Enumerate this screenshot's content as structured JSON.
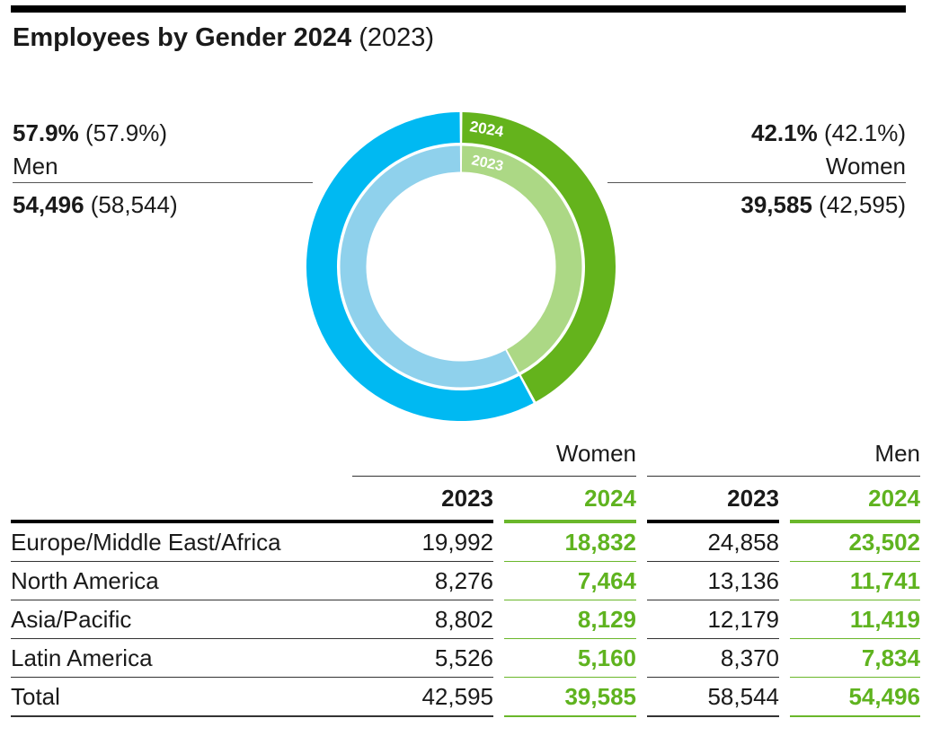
{
  "title": {
    "main": "Employees by Gender 2024",
    "previous": "(2023)"
  },
  "kpis": {
    "men": {
      "pct_2024": "57.9%",
      "pct_2023": "(57.9%)",
      "label": "Men",
      "count_2024": "54,496",
      "count_2023": "(58,544)"
    },
    "women": {
      "pct_2024": "42.1%",
      "pct_2023": "(42.1%)",
      "label": "Women",
      "count_2024": "39,585",
      "count_2023": "(42,595)"
    }
  },
  "colors": {
    "men_2024": "#00b9f2",
    "men_2023": "#8fd1ec",
    "women_2024": "#64b31c",
    "women_2023": "#acd885",
    "accent_green": "#5fb31f"
  },
  "chart_data": [
    {
      "type": "pie",
      "variant": "donut (two rings: outer 2024, inner 2023)",
      "ring_labels": [
        "2024",
        "2023"
      ],
      "series": [
        {
          "name": "2024",
          "categories": [
            "Women",
            "Men"
          ],
          "values": [
            42.1,
            57.9
          ],
          "counts": [
            39585,
            54496
          ]
        },
        {
          "name": "2023",
          "categories": [
            "Women",
            "Men"
          ],
          "values": [
            42.1,
            57.9
          ],
          "counts": [
            42595,
            58544
          ]
        }
      ]
    },
    {
      "type": "table",
      "groups": [
        "Women",
        "Men"
      ],
      "columns": [
        "2023",
        "2024",
        "2023",
        "2024"
      ],
      "rows": [
        {
          "label": "Europe/Middle East/Africa",
          "values": [
            "19,992",
            "18,832",
            "24,858",
            "23,502"
          ]
        },
        {
          "label": "North America",
          "values": [
            "8,276",
            "7,464",
            "13,136",
            "11,741"
          ]
        },
        {
          "label": "Asia/Pacific",
          "values": [
            "8,802",
            "8,129",
            "12,179",
            "11,419"
          ]
        },
        {
          "label": "Latin America",
          "values": [
            "5,526",
            "5,160",
            "8,370",
            "7,834"
          ]
        },
        {
          "label": "Total",
          "values": [
            "42,595",
            "39,585",
            "58,544",
            "54,496"
          ]
        }
      ]
    }
  ]
}
